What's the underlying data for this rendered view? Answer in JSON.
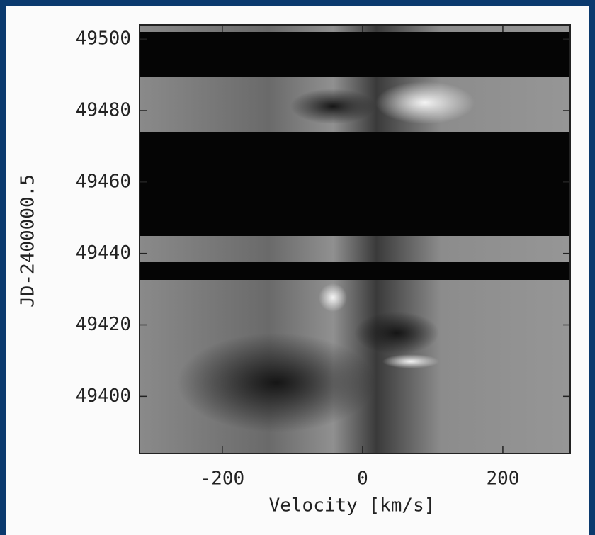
{
  "chart_data": {
    "type": "spectrogram",
    "xlabel": "Velocity [km/s]",
    "ylabel": "JD-2400000.5",
    "xlim": [
      -318,
      296
    ],
    "xticks": [
      -200,
      0,
      200
    ],
    "ylim": [
      49384,
      49504
    ],
    "yticks": [
      49400,
      49420,
      49440,
      49460,
      49480,
      49500
    ]
  }
}
